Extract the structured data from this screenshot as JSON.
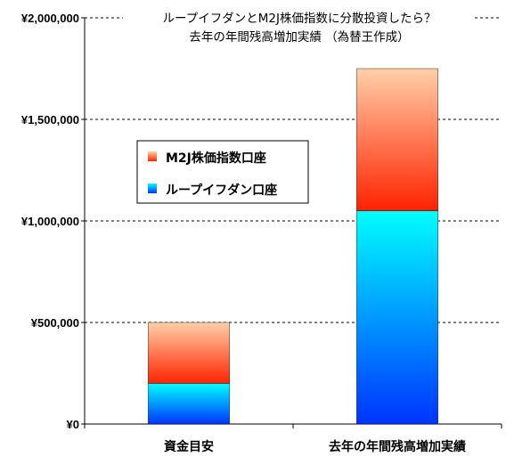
{
  "chart_data": {
    "type": "bar",
    "stacked": true,
    "title": "ループイフダンとM2J株価指数に分散投資したら？",
    "subtitle": "去年の年間残高増加実績 （為替王作成）",
    "categories": [
      "資金目安",
      "去年の年間残高増加実績"
    ],
    "series": [
      {
        "name": "ループイフダン口座",
        "values": [
          200000,
          1050000
        ],
        "color_top": "#00ffff",
        "color_bottom": "#0033ff"
      },
      {
        "name": "M2J株価指数口座",
        "values": [
          300000,
          700000
        ],
        "color_top": "#ffd0a8",
        "color_bottom": "#ff2200"
      }
    ],
    "ylim": [
      0,
      2000000
    ],
    "yticks": [
      0,
      500000,
      1000000,
      1500000,
      2000000
    ],
    "ytick_labels": [
      "¥0",
      "¥500,000",
      "¥1,000,000",
      "¥1,500,000",
      "¥2,000,000"
    ],
    "grid": true,
    "legend_position": "upper-left",
    "xlabel": "",
    "ylabel": ""
  }
}
